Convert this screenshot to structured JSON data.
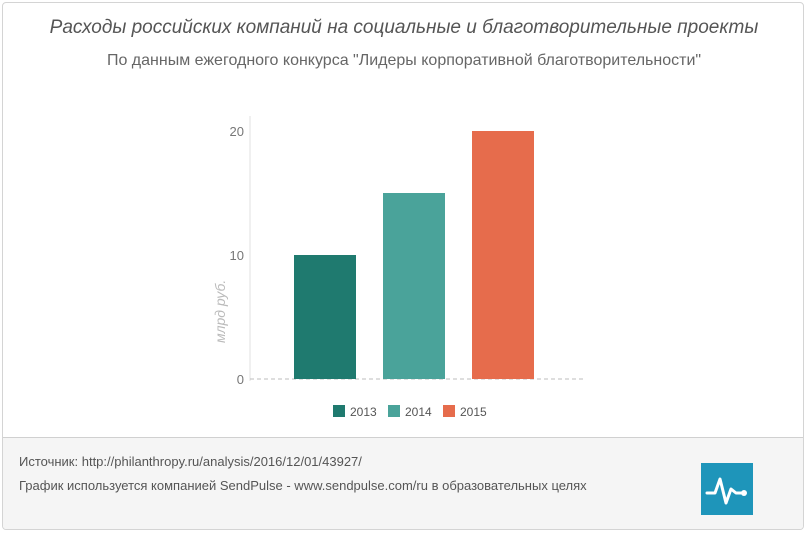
{
  "chart_data": {
    "type": "bar",
    "title": "Расходы российских компаний на социальные и благотворительные  проекты",
    "subtitle": "По данным ежегодного конкурса \"Лидеры корпоративной благотворительности\"",
    "ylabel": "млрд руб.",
    "ylim": [
      0,
      20
    ],
    "yticks": [
      "0",
      "10",
      "20"
    ],
    "series": [
      {
        "name": "2013",
        "values": [
          10
        ],
        "color": "#1f7a6f"
      },
      {
        "name": "2014",
        "values": [
          15
        ],
        "color": "#4aa39a"
      },
      {
        "name": "2015",
        "values": [
          20
        ],
        "color": "#e66c4c"
      }
    ],
    "grid": false,
    "legend": "bottom"
  },
  "footer": {
    "source": "Источник: http://philanthropy.ru/analysis/2016/12/01/43927/",
    "usage": "График используется компанией SendPulse - www.sendpulse.com/ru в образовательных целях",
    "logo_icon": "sendpulse-logo-icon",
    "logo_color": "#1e95ba"
  }
}
